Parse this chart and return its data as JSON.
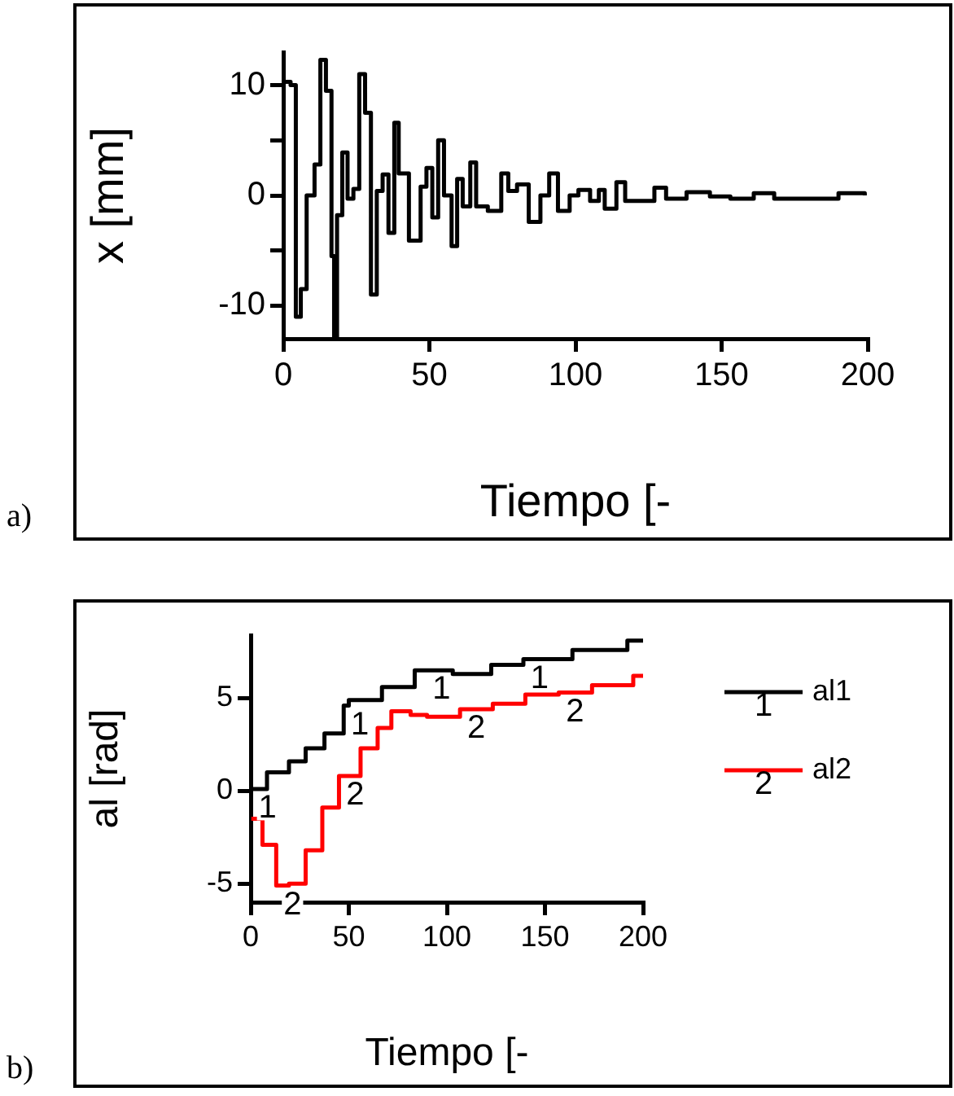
{
  "chart_data": [
    {
      "type": "step",
      "xlabel": "Tiempo [-",
      "ylabel": "x [mm]",
      "xlim": [
        0,
        200
      ],
      "xticks": [
        0,
        50,
        100,
        150,
        200
      ],
      "ylim": [
        -13,
        13
      ],
      "yticks": [
        {
          "value": -10,
          "label": "-10"
        },
        {
          "value": -5,
          "label": null
        },
        0,
        {
          "value": 5,
          "label": null
        },
        10
      ],
      "grid": false,
      "legend": false,
      "marker": "none",
      "annotations": [
        "a)"
      ],
      "series": [
        {
          "color": "#000000",
          "x": [
            0,
            2.5,
            4.3,
            6,
            8,
            10.7,
            12.7,
            14.6,
            16.5,
            17.4,
            18.4,
            20.2,
            22,
            24,
            26,
            28,
            30,
            32,
            34,
            36,
            38,
            39.5,
            43,
            47,
            49,
            51,
            53,
            55,
            57.6,
            59.5,
            61.4,
            64,
            66,
            70,
            74.6,
            77,
            80,
            84,
            88,
            91,
            94,
            98,
            101,
            105,
            108,
            110,
            114,
            117,
            127,
            131,
            138,
            146,
            153,
            161,
            168,
            176,
            183,
            190,
            199
          ],
          "values": [
            10.3,
            10,
            -11,
            -8.5,
            0,
            2.8,
            12.3,
            9.5,
            -5.5,
            -13,
            -1.8,
            3.9,
            -0.3,
            0.6,
            11,
            7.5,
            -9,
            0.4,
            1.9,
            -3.4,
            6.6,
            2,
            -4.1,
            0.8,
            2.5,
            -2,
            5,
            0,
            -4.6,
            1.5,
            -1,
            3,
            -1,
            -1.4,
            2,
            0.4,
            1,
            -2.4,
            0,
            2,
            -1.4,
            0,
            0.5,
            -0.5,
            0.5,
            -1.2,
            1.2,
            -0.5,
            0.7,
            -0.3,
            0.3,
            -0.1,
            -0.3,
            0.2,
            -0.3,
            -0.3,
            -0.3,
            0.2,
            0
          ]
        }
      ]
    },
    {
      "type": "step",
      "xlabel": "Tiempo [-",
      "ylabel": "al [rad]",
      "xlim": [
        0,
        200
      ],
      "xticks": [
        0,
        50,
        100,
        150,
        200
      ],
      "ylim": [
        -6,
        8.4
      ],
      "yticks": [
        -5,
        0,
        5
      ],
      "grid": false,
      "legend": "right",
      "marker": "none",
      "annotations": [
        "b)",
        {
          "text": "1",
          "x": 0.3,
          "y": 0.1
        },
        {
          "text": "1",
          "x": 47.4,
          "y": 4.6
        },
        {
          "text": "1",
          "x": 89,
          "y": 6.5
        },
        {
          "text": "1",
          "x": 139,
          "y": 7.1
        },
        {
          "text": "2",
          "x": 13,
          "y": -5.1
        },
        {
          "text": "2",
          "x": 45,
          "y": 0.8
        },
        {
          "text": "2",
          "x": 106.7,
          "y": 4.4
        },
        {
          "text": "2",
          "x": 157,
          "y": 5.3
        }
      ],
      "series": [
        {
          "name": "al1",
          "color": "#000000",
          "x": [
            0.3,
            8.3,
            19.5,
            28,
            37.6,
            47.4,
            50,
            66.9,
            83.6,
            89,
            103,
            122.6,
            139,
            164,
            192,
            200
          ],
          "values": [
            0.1,
            1,
            1.6,
            2.3,
            3.1,
            4.6,
            4.9,
            5.6,
            6.5,
            6.5,
            6.3,
            6.8,
            7.1,
            7.6,
            8.1,
            8.1
          ]
        },
        {
          "name": "al2",
          "color": "#ff0000",
          "x": [
            0.3,
            6,
            13,
            19.5,
            28,
            36.5,
            45,
            56,
            64.7,
            71.7,
            81.5,
            89.9,
            106.7,
            123.4,
            140,
            157,
            174,
            195,
            200
          ],
          "values": [
            -1.5,
            -2.9,
            -5.1,
            -5,
            -3.2,
            -0.9,
            0.8,
            2.3,
            3.4,
            4.3,
            4.1,
            4,
            4.4,
            4.7,
            5.2,
            5.3,
            5.7,
            6.2,
            6.2
          ]
        }
      ]
    }
  ]
}
